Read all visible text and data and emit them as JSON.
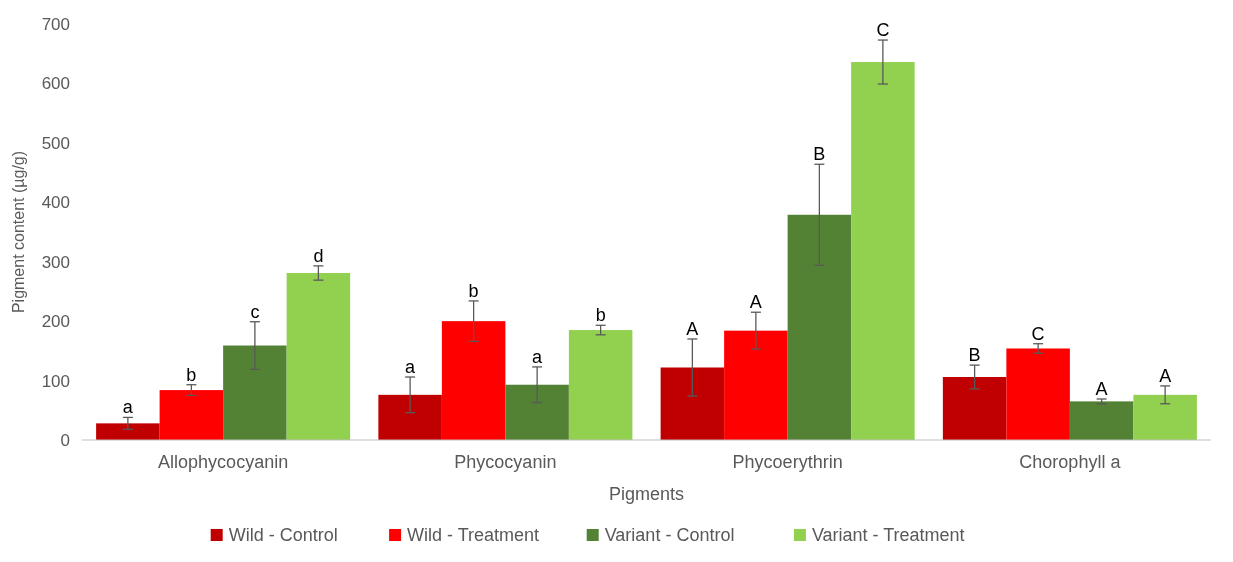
{
  "chart_data": {
    "type": "bar",
    "xlabel": "Pigments",
    "ylabel": "Pigment content (µg/g)",
    "categories": [
      "Allophycocyanin",
      "Phycocyanin",
      "Phycoerythrin",
      "Chorophyll a"
    ],
    "ylim": [
      0,
      700
    ],
    "yticks": [
      0,
      100,
      200,
      300,
      400,
      500,
      600,
      700
    ],
    "grid": false,
    "legend": "bottom",
    "series": [
      {
        "name": "Wild - Control",
        "color": "#c00000",
        "values": [
          28,
          76,
          122,
          106
        ],
        "errors": [
          10,
          30,
          48,
          20
        ],
        "value_labels": [
          "a",
          "a",
          "A",
          "B"
        ]
      },
      {
        "name": "Wild - Treatment",
        "color": "#ff0000",
        "values": [
          84,
          200,
          184,
          154
        ],
        "errors": [
          9,
          34,
          31,
          8
        ],
        "value_labels": [
          "b",
          "b",
          "A",
          "C"
        ]
      },
      {
        "name": "Variant - Control",
        "color": "#548235",
        "values": [
          159,
          93,
          379,
          65
        ],
        "errors": [
          40,
          30,
          85,
          4
        ],
        "value_labels": [
          "c",
          "a",
          "B",
          "A"
        ]
      },
      {
        "name": "Variant - Treatment",
        "color": "#92d050",
        "values": [
          281,
          185,
          636,
          76
        ],
        "errors": [
          12,
          8,
          37,
          15
        ],
        "value_labels": [
          "d",
          "b",
          "C",
          "A"
        ]
      }
    ]
  }
}
